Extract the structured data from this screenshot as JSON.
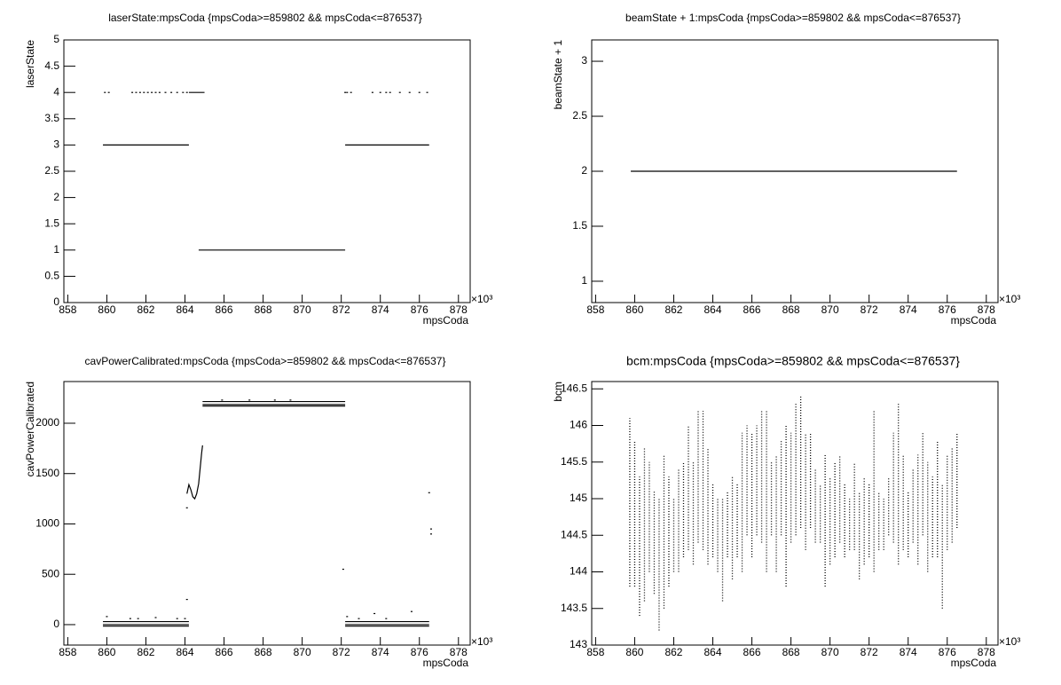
{
  "chart_data": [
    {
      "type": "scatter",
      "title": "laserState:mpsCoda {mpsCoda>=859802 && mpsCoda<=876537}",
      "x_label": "mpsCoda",
      "y_label": "laserState",
      "x_multiplier": "×10³",
      "xlim": [
        857.8,
        878.6
      ],
      "xticks": [
        858,
        860,
        862,
        864,
        866,
        868,
        870,
        872,
        874,
        876,
        878
      ],
      "ylim": [
        0,
        5
      ],
      "yticks": [
        0,
        0.5,
        1,
        1.5,
        2,
        2.5,
        3,
        3.5,
        4,
        4.5,
        5
      ],
      "color": "#000000",
      "series": [
        {
          "mode": "line",
          "x": [
            859.8,
            864.2
          ],
          "values": [
            3,
            3
          ]
        },
        {
          "mode": "line",
          "x": [
            864.7,
            872.2
          ],
          "values": [
            1,
            1
          ]
        },
        {
          "mode": "line",
          "x": [
            872.2,
            876.5
          ],
          "values": [
            3,
            3
          ]
        },
        {
          "mode": "line",
          "x": [
            864.2,
            865.0
          ],
          "values": [
            4,
            4
          ]
        },
        {
          "mode": "markers",
          "x": [
            859.9,
            860.1,
            861.3,
            861.5,
            861.7,
            861.9,
            862.1,
            862.3,
            862.5,
            862.7,
            863.0,
            863.3,
            863.6,
            863.9,
            864.1,
            872.2,
            872.3,
            872.5,
            873.6,
            874.0,
            874.3,
            874.5,
            875.0,
            875.5,
            876.0,
            876.4
          ],
          "values": [
            4,
            4,
            4,
            4,
            4,
            4,
            4,
            4,
            4,
            4,
            4,
            4,
            4,
            4,
            4,
            4,
            4,
            4,
            4,
            4,
            4,
            4,
            4,
            4,
            4,
            4
          ]
        }
      ]
    },
    {
      "type": "scatter",
      "title": "beamState + 1:mpsCoda {mpsCoda>=859802 && mpsCoda<=876537}",
      "x_label": "mpsCoda",
      "y_label": "beamState + 1",
      "x_multiplier": "×10³",
      "xlim": [
        857.8,
        878.6
      ],
      "xticks": [
        858,
        860,
        862,
        864,
        866,
        868,
        870,
        872,
        874,
        876,
        878
      ],
      "ylim": [
        0.806,
        3.194
      ],
      "yticks": [
        1,
        1.5,
        2,
        2.5,
        3
      ],
      "color": "#000000",
      "series": [
        {
          "mode": "line",
          "x": [
            859.8,
            876.5
          ],
          "values": [
            2,
            2
          ]
        }
      ]
    },
    {
      "type": "scatter",
      "title": "cavPowerCalibrated:mpsCoda {mpsCoda>=859802 && mpsCoda<=876537}",
      "x_label": "mpsCoda",
      "y_label": "cavPowerCalibrated",
      "x_multiplier": "×10³",
      "xlim": [
        857.8,
        878.6
      ],
      "xticks": [
        858,
        860,
        862,
        864,
        866,
        868,
        870,
        872,
        874,
        876,
        878
      ],
      "ylim": [
        -203,
        2414
      ],
      "yticks": [
        0,
        500,
        1000,
        1500,
        2000
      ],
      "color": "#000000",
      "series": [
        {
          "mode": "line",
          "x": [
            859.8,
            864.2
          ],
          "values": [
            30,
            30
          ]
        },
        {
          "mode": "line",
          "x": [
            859.8,
            864.2
          ],
          "values": [
            0,
            0
          ]
        },
        {
          "mode": "line",
          "x": [
            859.8,
            864.2
          ],
          "values": [
            -15,
            -15
          ]
        },
        {
          "mode": "line",
          "x": [
            864.9,
            872.2
          ],
          "values": [
            2215,
            2215
          ]
        },
        {
          "mode": "line",
          "x": [
            864.9,
            872.2
          ],
          "values": [
            2185,
            2185
          ]
        },
        {
          "mode": "line",
          "x": [
            864.9,
            872.2
          ],
          "values": [
            2170,
            2170
          ]
        },
        {
          "mode": "line",
          "x": [
            872.2,
            876.5
          ],
          "values": [
            30,
            30
          ]
        },
        {
          "mode": "line",
          "x": [
            872.2,
            876.5
          ],
          "values": [
            0,
            0
          ]
        },
        {
          "mode": "line",
          "x": [
            872.2,
            876.5
          ],
          "values": [
            -15,
            -15
          ]
        },
        {
          "mode": "line",
          "x": [
            864.1,
            864.2,
            864.3,
            864.4,
            864.5,
            864.6,
            864.7,
            864.75,
            864.8,
            864.85,
            864.9
          ],
          "values": [
            1300,
            1390,
            1340,
            1270,
            1250,
            1300,
            1400,
            1500,
            1600,
            1700,
            1780
          ]
        },
        {
          "mode": "markers",
          "x": [
            864.1,
            864.1,
            872.1,
            876.5,
            876.6,
            876.6,
            860.0,
            861.2,
            861.6,
            862.5,
            863.6,
            864.0,
            872.3,
            872.9,
            873.7,
            874.3,
            875.6,
            865.9,
            867.3,
            868.6,
            869.4
          ],
          "values": [
            1160,
            250,
            550,
            1310,
            950,
            900,
            80,
            60,
            60,
            70,
            60,
            60,
            80,
            60,
            110,
            60,
            130,
            2230,
            2230,
            2230,
            2230
          ]
        }
      ]
    },
    {
      "type": "range",
      "title": "bcm:mpsCoda {mpsCoda>=859802 && mpsCoda<=876537}",
      "x_label": "mpsCoda",
      "y_label": "bcm",
      "x_multiplier": "×10³",
      "xlim": [
        857.8,
        878.6
      ],
      "xticks": [
        858,
        860,
        862,
        864,
        866,
        868,
        870,
        872,
        874,
        876,
        878
      ],
      "ylim": [
        143,
        146.6
      ],
      "yticks": [
        143,
        143.5,
        144,
        144.5,
        145,
        145.5,
        146,
        146.5
      ],
      "color": "#000000",
      "x": [
        859.75,
        860,
        860.25,
        860.5,
        860.75,
        861,
        861.25,
        861.5,
        861.75,
        862,
        862.25,
        862.5,
        862.75,
        863,
        863.25,
        863.5,
        863.75,
        864,
        864.25,
        864.5,
        864.75,
        865,
        865.25,
        865.5,
        865.75,
        866,
        866.25,
        866.5,
        866.75,
        867,
        867.25,
        867.5,
        867.75,
        868,
        868.25,
        868.5,
        868.75,
        869,
        869.25,
        869.5,
        869.75,
        870,
        870.25,
        870.5,
        870.75,
        871,
        871.25,
        871.5,
        871.75,
        872,
        872.25,
        872.5,
        872.75,
        873,
        873.25,
        873.5,
        873.75,
        874,
        874.25,
        874.5,
        874.75,
        875,
        875.25,
        875.5,
        875.75,
        876,
        876.25,
        876.5
      ],
      "low": [
        143.8,
        143.8,
        143.4,
        143.6,
        144.0,
        143.7,
        143.2,
        143.5,
        143.8,
        144.0,
        144.0,
        144.2,
        144.3,
        144.1,
        144.4,
        144.3,
        144.1,
        144.2,
        144.0,
        143.6,
        144.2,
        143.9,
        144.2,
        144.0,
        144.5,
        144.2,
        144.5,
        144.4,
        144.0,
        144.5,
        144.0,
        144.5,
        143.8,
        144.4,
        144.5,
        144.6,
        144.3,
        144.6,
        144.4,
        144.4,
        143.8,
        144.1,
        144.2,
        144.4,
        144.2,
        144.3,
        144.3,
        143.9,
        144.1,
        144.2,
        144.0,
        144.3,
        144.3,
        144.5,
        144.4,
        144.1,
        144.3,
        144.2,
        144.4,
        144.1,
        144.5,
        144.0,
        144.2,
        144.2,
        143.5,
        144.3,
        144.4,
        144.6
      ],
      "high": [
        146.1,
        145.8,
        145.3,
        145.7,
        145.5,
        145.1,
        145.0,
        145.6,
        145.3,
        145.0,
        145.4,
        145.5,
        146.0,
        145.5,
        146.2,
        146.2,
        145.7,
        145.2,
        145.0,
        145.0,
        145.1,
        145.3,
        145.2,
        145.9,
        146.0,
        145.9,
        146.0,
        146.2,
        146.2,
        145.5,
        145.6,
        145.8,
        146.0,
        145.9,
        146.3,
        146.4,
        145.9,
        145.9,
        145.4,
        145.2,
        145.6,
        145.3,
        145.5,
        145.6,
        145.2,
        145.0,
        145.5,
        145.1,
        145.3,
        145.2,
        146.2,
        145.1,
        145.0,
        145.3,
        145.9,
        146.3,
        145.6,
        145.1,
        145.4,
        145.6,
        145.9,
        145.5,
        145.3,
        145.8,
        145.2,
        145.6,
        145.7,
        145.9
      ]
    }
  ]
}
